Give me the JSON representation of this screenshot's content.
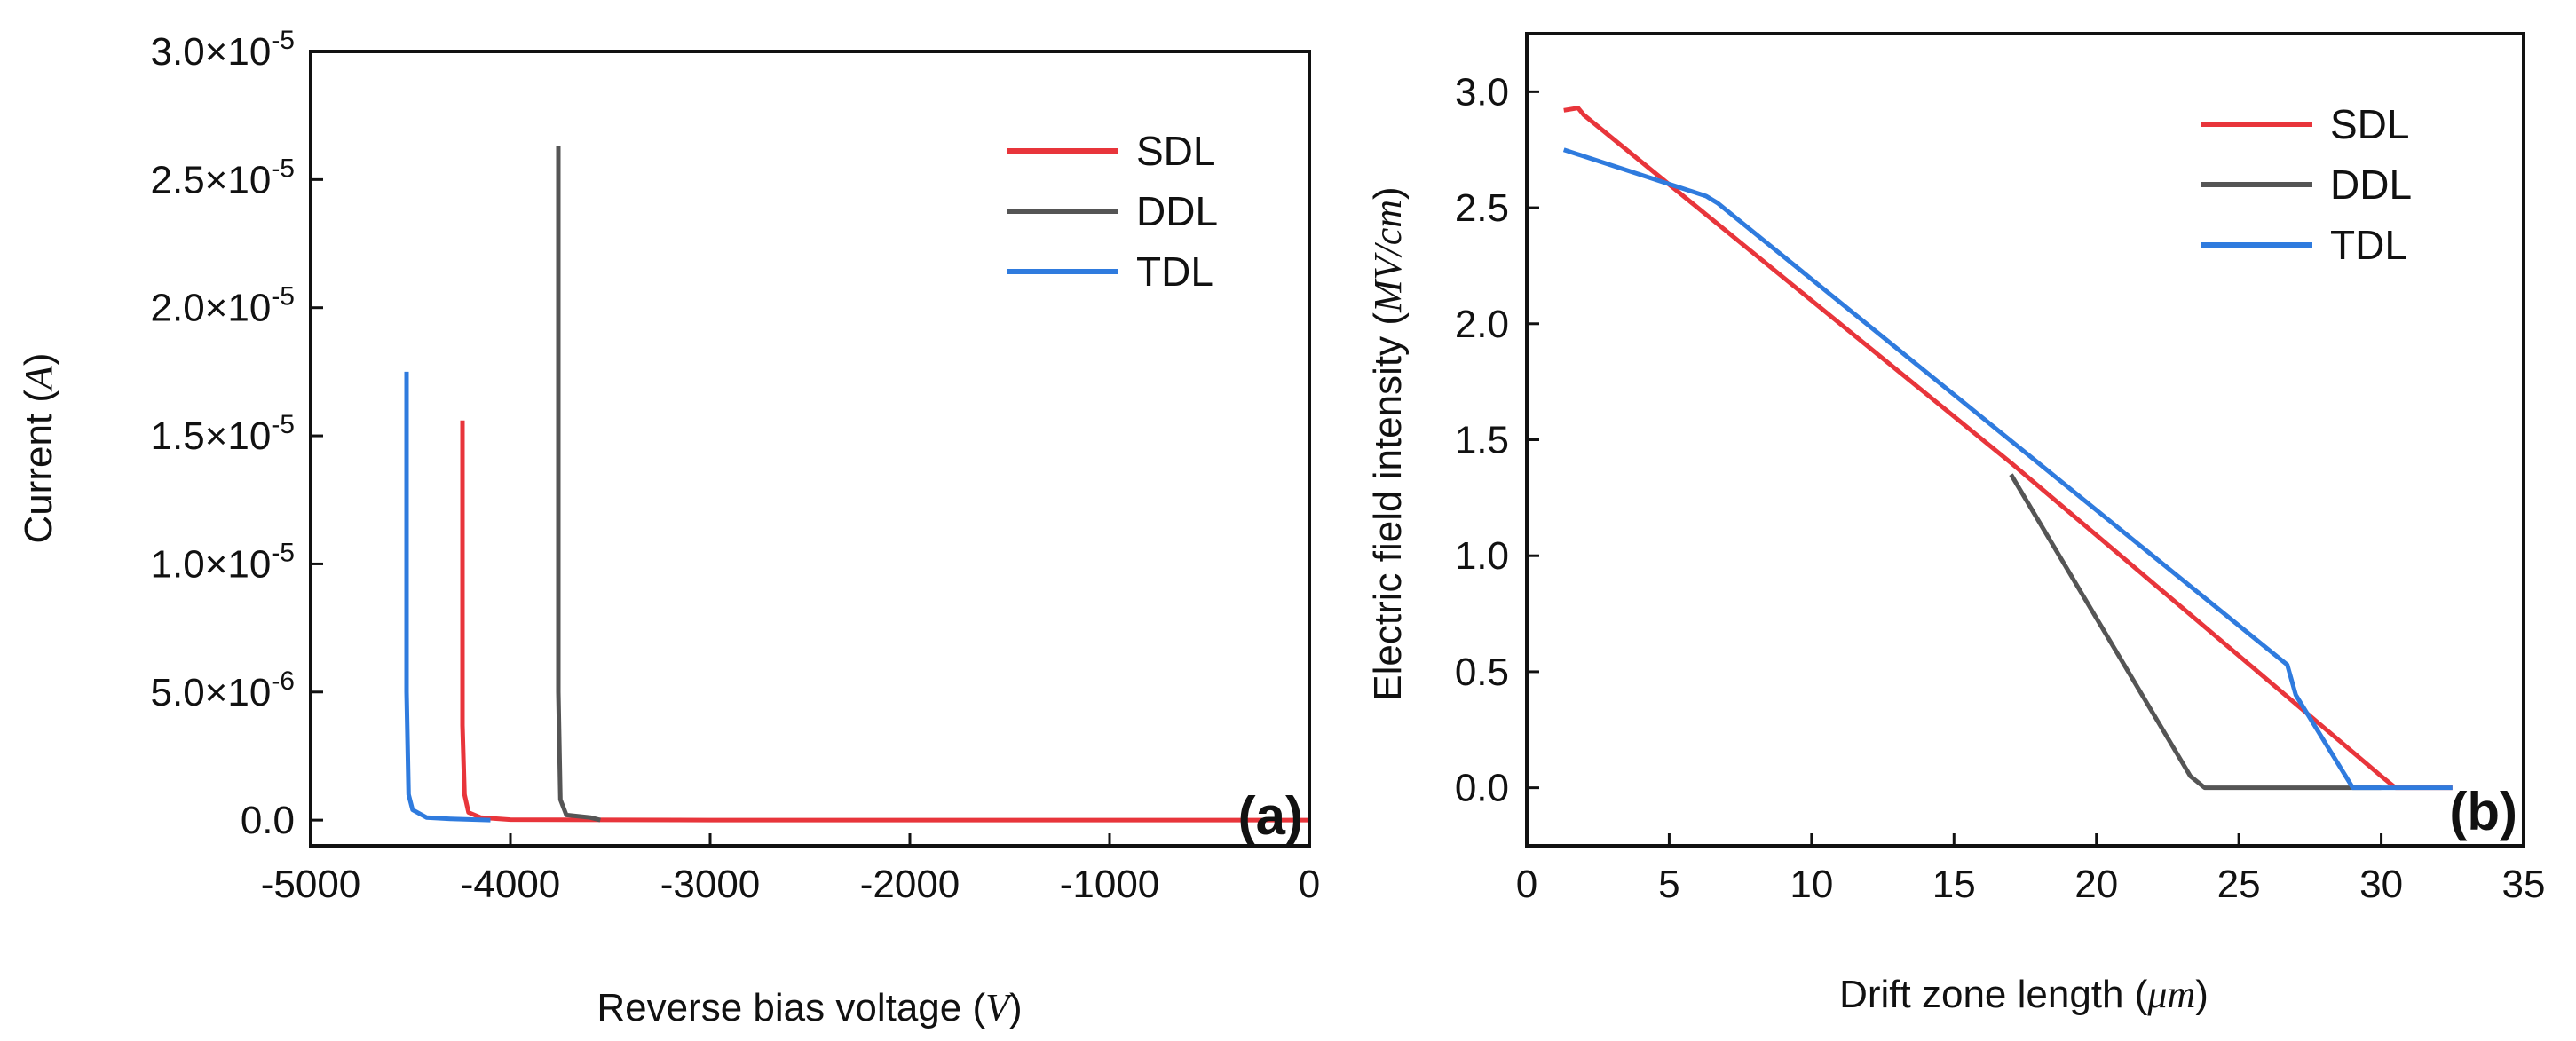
{
  "chart_data": [
    {
      "panel": "(a)",
      "type": "line",
      "xlabel": "Reverse bias voltage (",
      "xlabel_unit": "V",
      "ylabel": "Current (",
      "ylabel_unit": "A",
      "xlim": [
        -5000,
        0
      ],
      "ylim": [
        -1e-06,
        3e-05
      ],
      "xticks": [
        -5000,
        -4000,
        -3000,
        -2000,
        -1000,
        0
      ],
      "xtick_labels": [
        "-5000",
        "-4000",
        "-3000",
        "-2000",
        "-1000",
        "0"
      ],
      "yticks": [
        0,
        5e-06,
        1e-05,
        1.5e-05,
        2e-05,
        2.5e-05,
        3e-05
      ],
      "ytick_labels": [
        {
          "text": "0.0"
        },
        {
          "text": "5.0×10",
          "exp": "-6"
        },
        {
          "text": "1.0×10",
          "exp": "-5"
        },
        {
          "text": "1.5×10",
          "exp": "-5"
        },
        {
          "text": "2.0×10",
          "exp": "-5"
        },
        {
          "text": "2.5×10",
          "exp": "-5"
        },
        {
          "text": "3.0×10",
          "exp": "-5"
        }
      ],
      "legend_position": "top-right",
      "grid": false,
      "series": [
        {
          "name": "SDL",
          "color": "#e8353b",
          "points": [
            [
              -4240,
              1.56e-05
            ],
            [
              -4240,
              3.7e-06
            ],
            [
              -4230,
              1e-06
            ],
            [
              -4210,
              3e-07
            ],
            [
              -4150,
              1e-07
            ],
            [
              -4000,
              2e-08
            ],
            [
              -3000,
              0
            ],
            [
              0,
              0
            ]
          ]
        },
        {
          "name": "DDL",
          "color": "#555555",
          "points": [
            [
              -3760,
              2.63e-05
            ],
            [
              -3760,
              5e-06
            ],
            [
              -3750,
              8e-07
            ],
            [
              -3720,
              2e-07
            ],
            [
              -3600,
              1e-07
            ],
            [
              -3550,
              0
            ]
          ]
        },
        {
          "name": "TDL",
          "color": "#2f7bde",
          "points": [
            [
              -4520,
              1.75e-05
            ],
            [
              -4520,
              5e-06
            ],
            [
              -4510,
              1e-06
            ],
            [
              -4490,
              4e-07
            ],
            [
              -4420,
              1e-07
            ],
            [
              -4300,
              5e-08
            ],
            [
              -4100,
              0
            ]
          ]
        }
      ]
    },
    {
      "panel": "(b)",
      "type": "line",
      "xlabel": "Drift zone length (",
      "xlabel_unit": "μm",
      "ylabel": "Electric field intensity (",
      "ylabel_unit": "MV/cm",
      "xlim": [
        0,
        35
      ],
      "ylim": [
        -0.25,
        3.25
      ],
      "xticks": [
        0,
        5,
        10,
        15,
        20,
        25,
        30,
        35
      ],
      "xtick_labels": [
        "0",
        "5",
        "10",
        "15",
        "20",
        "25",
        "30",
        "35"
      ],
      "yticks": [
        0,
        0.5,
        1.0,
        1.5,
        2.0,
        2.5,
        3.0
      ],
      "ytick_labels": [
        {
          "text": "0.0"
        },
        {
          "text": "0.5"
        },
        {
          "text": "1.0"
        },
        {
          "text": "1.5"
        },
        {
          "text": "2.0"
        },
        {
          "text": "2.5"
        },
        {
          "text": "3.0"
        }
      ],
      "legend_position": "top-right",
      "grid": false,
      "series": [
        {
          "name": "SDL",
          "color": "#e8353b",
          "points": [
            [
              1.3,
              2.92
            ],
            [
              1.8,
              2.93
            ],
            [
              2.0,
              2.9
            ],
            [
              17.0,
              1.4
            ],
            [
              30.0,
              0.05
            ],
            [
              30.5,
              0.0
            ],
            [
              32.5,
              0.0
            ]
          ]
        },
        {
          "name": "DDL",
          "color": "#555555",
          "points": [
            [
              17.0,
              1.35
            ],
            [
              23.3,
              0.05
            ],
            [
              23.8,
              0.0
            ],
            [
              30.0,
              0.0
            ]
          ]
        },
        {
          "name": "TDL",
          "color": "#2f7bde",
          "points": [
            [
              1.3,
              2.75
            ],
            [
              6.3,
              2.55
            ],
            [
              6.7,
              2.52
            ],
            [
              26.7,
              0.53
            ],
            [
              27.0,
              0.4
            ],
            [
              29.0,
              0.0
            ],
            [
              32.5,
              0.0
            ]
          ]
        }
      ]
    }
  ]
}
